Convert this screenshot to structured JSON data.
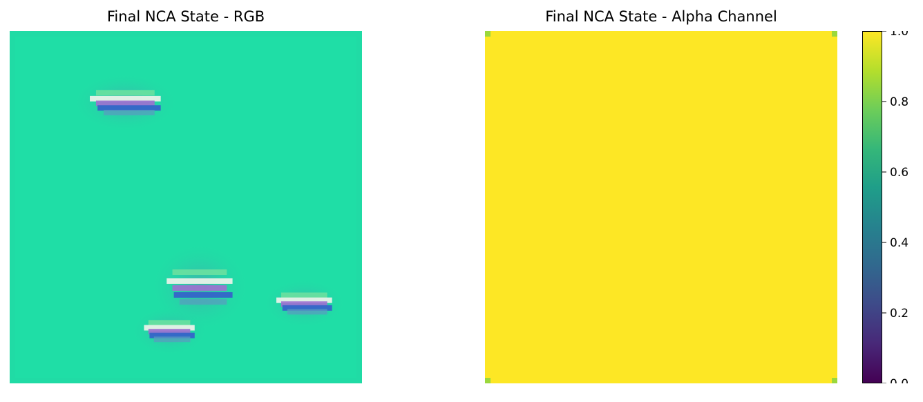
{
  "chart_data": [
    {
      "type": "heatmap",
      "title": "Final NCA State - RGB",
      "grid_size": 64,
      "background_color": "#1FDEA6",
      "border_color": "#22D6A2",
      "blobs": [
        {
          "label": "cluster top-left",
          "col": 14,
          "row": 10,
          "width": 14,
          "height": 6
        },
        {
          "label": "cluster lower-middle",
          "col": 28,
          "row": 42,
          "width": 13,
          "height": 9
        },
        {
          "label": "cluster lower-right",
          "col": 48,
          "row": 47,
          "width": 11,
          "height": 5
        },
        {
          "label": "cluster bottom-middle",
          "col": 24,
          "row": 52,
          "width": 10,
          "height": 5
        }
      ],
      "axes": "off"
    },
    {
      "type": "heatmap",
      "title": "Final NCA State - Alpha Channel",
      "grid_size": 64,
      "value_fill": 1.0,
      "corner_value": 0.85,
      "colormap": "viridis",
      "colorbar": {
        "range": [
          0.0,
          1.0
        ],
        "ticks": [
          "0.0",
          "0.2",
          "0.4",
          "0.6",
          "0.8",
          "1.0"
        ],
        "colors": [
          "#440154",
          "#482878",
          "#3E4A89",
          "#31688E",
          "#26828E",
          "#1F9E89",
          "#35B779",
          "#6DCD59",
          "#B4DE2C",
          "#FDE725"
        ]
      },
      "axes": "off"
    }
  ]
}
